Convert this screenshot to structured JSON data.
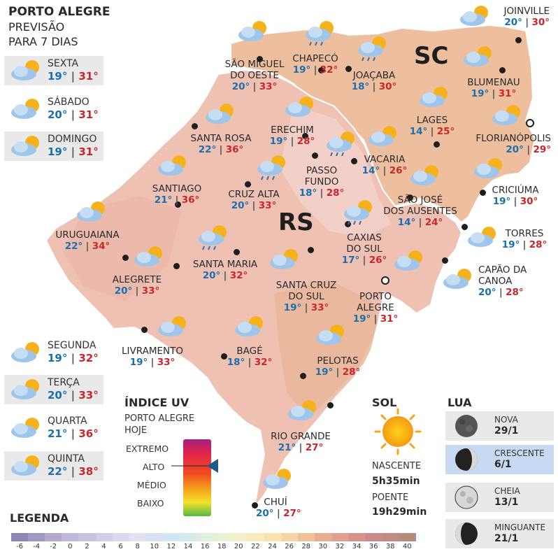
{
  "header": {
    "title": "PORTO ALEGRE",
    "subtitle_line1": "PREVISÃO",
    "subtitle_line2": "PARA 7 DIAS"
  },
  "forecast": [
    {
      "day": "SEXTA",
      "min": "19°",
      "max": "31°"
    },
    {
      "day": "SÁBADO",
      "min": "20°",
      "max": "31°"
    },
    {
      "day": "DOMINGO",
      "min": "19°",
      "max": "31°"
    },
    {
      "day": "SEGUNDA",
      "min": "19°",
      "max": "32°"
    },
    {
      "day": "TERÇA",
      "min": "20°",
      "max": "33°"
    },
    {
      "day": "QUARTA",
      "min": "21°",
      "max": "36°"
    },
    {
      "day": "QUINTA",
      "min": "22°",
      "max": "38°"
    }
  ],
  "states": {
    "rs": "RS",
    "sc": "SC"
  },
  "cities": [
    {
      "name": "JOINVILLE",
      "min": "20°",
      "max": "30°",
      "icon": "partly-cloudy-icon"
    },
    {
      "name": "CHAPECÓ",
      "min": "19°",
      "max": "32°",
      "icon": "partly-cloudy-rain-icon"
    },
    {
      "name": "SÃO MIGUEL",
      "name2": "DO OESTE",
      "min": "20°",
      "max": "33°",
      "icon": "partly-cloudy-icon"
    },
    {
      "name": "JOAÇABA",
      "min": "18°",
      "max": "30°",
      "icon": "partly-cloudy-rain-icon"
    },
    {
      "name": "BLUMENAU",
      "min": "19°",
      "max": "31°",
      "icon": "partly-cloudy-icon"
    },
    {
      "name": "LAGES",
      "min": "14°",
      "max": "25°",
      "icon": "partly-cloudy-icon"
    },
    {
      "name": "FLORIANÓPOLIS",
      "min": "20°",
      "max": "29°",
      "icon": "partly-cloudy-icon"
    },
    {
      "name": "ERECHIM",
      "min": "19°",
      "max": "28°",
      "icon": "partly-cloudy-icon"
    },
    {
      "name": "SANTA ROSA",
      "min": "22°",
      "max": "36°",
      "icon": "partly-cloudy-icon"
    },
    {
      "name": "VACARIA",
      "min": "14°",
      "max": "26°",
      "icon": "partly-cloudy-icon"
    },
    {
      "name": "PASSO",
      "name2": "FUNDO",
      "min": "18°",
      "max": "28°",
      "icon": "partly-cloudy-rain-icon"
    },
    {
      "name": "CRUZ ALTA",
      "min": "20°",
      "max": "33°",
      "icon": "partly-cloudy-rain-icon"
    },
    {
      "name": "SANTIAGO",
      "min": "21°",
      "max": "36°",
      "icon": "partly-cloudy-icon"
    },
    {
      "name": "CRICIÚMA",
      "min": "19°",
      "max": "30°",
      "icon": "partly-cloudy-icon"
    },
    {
      "name": "SÃO JOSÉ",
      "name2": "DOS AUSENTES",
      "min": "14°",
      "max": "24°",
      "icon": "partly-cloudy-icon"
    },
    {
      "name": "URUGUAIANA",
      "min": "22°",
      "max": "34°",
      "icon": "partly-cloudy-icon"
    },
    {
      "name": "TORRES",
      "min": "19°",
      "max": "28°",
      "icon": "partly-cloudy-icon"
    },
    {
      "name": "CAXIAS",
      "name2": "DO SUL",
      "min": "17°",
      "max": "26°",
      "icon": "partly-cloudy-rain-icon"
    },
    {
      "name": "SANTA MARIA",
      "min": "20°",
      "max": "32°",
      "icon": "partly-cloudy-rain-icon"
    },
    {
      "name": "ALEGRETE",
      "min": "20°",
      "max": "33°",
      "icon": "partly-cloudy-icon"
    },
    {
      "name": "CAPÃO DA",
      "name2": "CANOA",
      "min": "20°",
      "max": "28°",
      "icon": "partly-cloudy-icon"
    },
    {
      "name": "SANTA CRUZ",
      "name2": "DO SUL",
      "min": "19°",
      "max": "33°",
      "icon": "partly-cloudy-icon"
    },
    {
      "name": "PORTO",
      "name2": "ALEGRE",
      "min": "19°",
      "max": "31°",
      "icon": "partly-cloudy-icon"
    },
    {
      "name": "LIVRAMENTO",
      "min": "19°",
      "max": "33°",
      "icon": "partly-cloudy-icon"
    },
    {
      "name": "BAGÉ",
      "min": "18°",
      "max": "32°",
      "icon": "partly-cloudy-icon"
    },
    {
      "name": "PELOTAS",
      "min": "19°",
      "max": "28°",
      "icon": "partly-cloudy-icon"
    },
    {
      "name": "RIO GRANDE",
      "min": "21°",
      "max": "27°",
      "icon": "partly-cloudy-icon"
    },
    {
      "name": "CHUÍ",
      "min": "20°",
      "max": "27°",
      "icon": "partly-cloudy-icon"
    }
  ],
  "uv": {
    "title": "ÍNDICE UV",
    "sub1": "PORTO ALEGRE",
    "sub2": "HOJE",
    "levels": [
      "EXTREMO",
      "ALTO",
      "MÉDIO",
      "BAIXO"
    ],
    "today_level": "ALTO"
  },
  "sol": {
    "title": "SOL",
    "nascente_label": "NASCENTE",
    "nascente": "5h35min",
    "poente_label": "POENTE",
    "poente": "19h29min"
  },
  "lua": {
    "title": "LUA",
    "phases": [
      {
        "name": "NOVA",
        "date": "29/1",
        "icon": "moon-new-icon"
      },
      {
        "name": "CRESCENTE",
        "date": "6/1",
        "icon": "moon-crescent-icon"
      },
      {
        "name": "CHEIA",
        "date": "13/1",
        "icon": "moon-full-icon"
      },
      {
        "name": "MINGUANTE",
        "date": "21/1",
        "icon": "moon-waning-icon"
      }
    ]
  },
  "legend": {
    "title": "LEGENDA",
    "ticks": [
      "-6",
      "-4",
      "-2",
      "0",
      "2",
      "4",
      "6",
      "8",
      "10",
      "12",
      "14",
      "16",
      "18",
      "20",
      "22",
      "24",
      "26",
      "28",
      "30",
      "32",
      "34",
      "36",
      "38",
      "40"
    ],
    "colors": [
      "#8f86b3",
      "#a39ac2",
      "#b2a9cd",
      "#c0b8d8",
      "#c9c3df",
      "#d3cee5",
      "#dcd9ec",
      "#e2e1f0",
      "#d7e3f1",
      "#d1e6f0",
      "#d3ebe9",
      "#dcefe2",
      "#e6f1d6",
      "#f0f2cc",
      "#f6edbe",
      "#f7e2b2",
      "#f4d4a4",
      "#eec19a",
      "#e6ae93",
      "#dea190",
      "#d4948e",
      "#c98b8c",
      "#bf8b83",
      "#b48c7b"
    ]
  }
}
